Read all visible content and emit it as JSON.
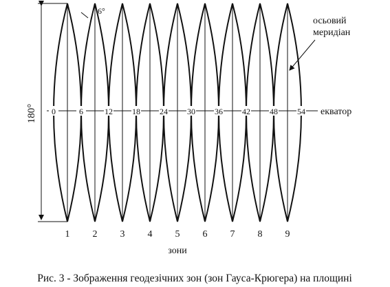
{
  "diagram": {
    "top_angle": "6°",
    "axial_meridian": [
      "осьовий",
      "меридіан"
    ],
    "height_label": "180°",
    "equator_label": "екватор",
    "equator_ticks": [
      "0",
      "6",
      "12",
      "18",
      "24",
      "30",
      "36",
      "42",
      "48",
      "54"
    ],
    "zones": [
      "1",
      "2",
      "3",
      "4",
      "5",
      "6",
      "7",
      "8",
      "9"
    ],
    "zones_label": "зони",
    "caption": "Рис. 3 - Зображення геодезічних зон (зон Гауса-Крюгера) на площині"
  }
}
